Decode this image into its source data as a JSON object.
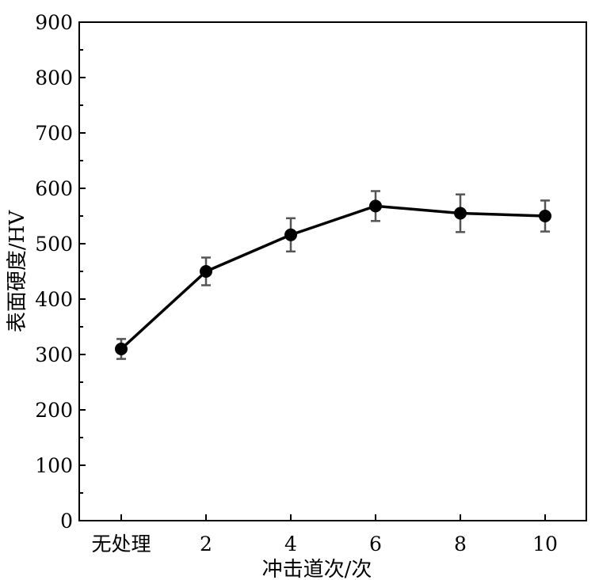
{
  "chart_data": {
    "type": "line",
    "title": "",
    "xlabel": "冲击道次/次",
    "ylabel": "表面硬度/HV",
    "categories": [
      "无处理",
      "2",
      "4",
      "6",
      "8",
      "10"
    ],
    "values": [
      310,
      450,
      516,
      568,
      555,
      550
    ],
    "errors": [
      18,
      25,
      30,
      27,
      34,
      28
    ],
    "ylim": [
      0,
      900
    ],
    "yticks": [
      0,
      100,
      200,
      300,
      400,
      500,
      600,
      700,
      800,
      900
    ],
    "grid": false,
    "colors": {
      "line": "#000000",
      "error_bar": "#555555"
    }
  }
}
